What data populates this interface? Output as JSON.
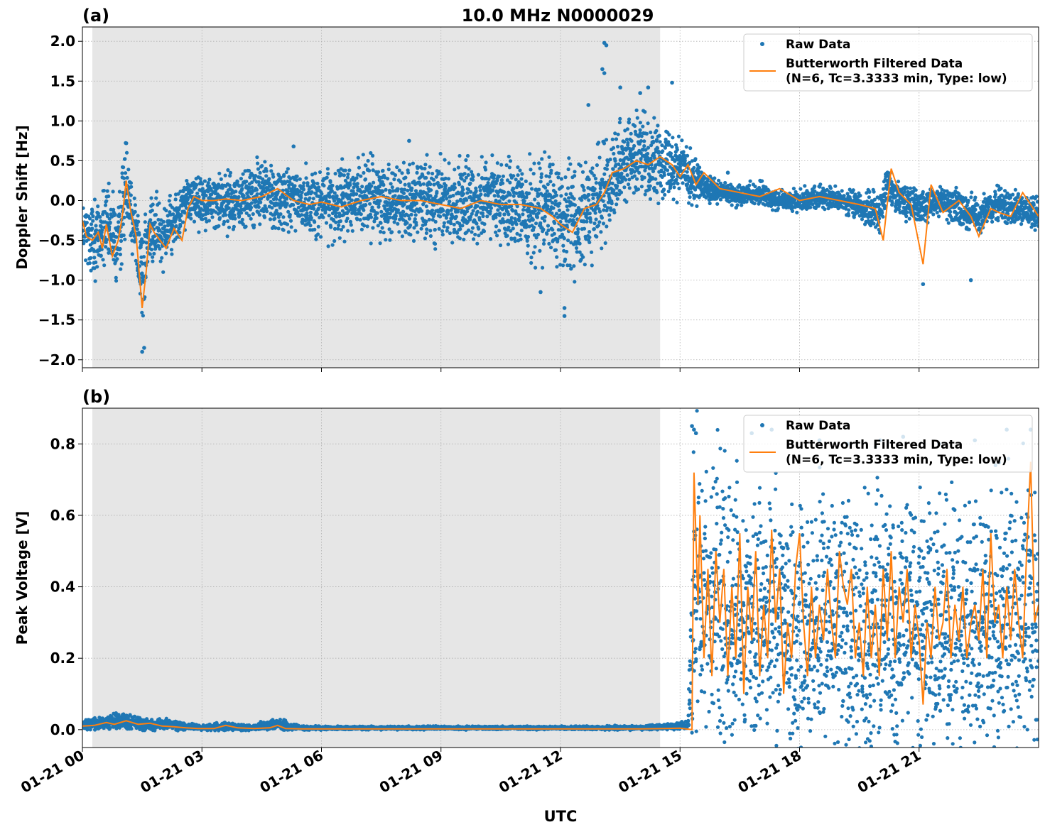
{
  "figure": {
    "suptitle": "10.0 MHz N0000029",
    "xlabel": "UTC",
    "x_tick_labels": [
      "01-21 00",
      "01-21 03",
      "01-21 06",
      "01-21 09",
      "01-21 12",
      "01-21 15",
      "01-21 18",
      "01-21 21"
    ],
    "colors": {
      "raw": "#1f77b4",
      "filtered": "#ff7f0e",
      "night_shade": "#e6e6e6",
      "grid": "#b0b0b0"
    }
  },
  "chart_data": [
    {
      "type": "scatter",
      "panel_label": "(a)",
      "title": "10.0 MHz N0000029",
      "xlabel": "UTC",
      "ylabel": "Doppler Shift [Hz]",
      "xlim_hours": [
        0,
        24
      ],
      "ylim": [
        -2.1,
        2.18
      ],
      "y_ticks": [
        -2.0,
        -1.5,
        -1.0,
        -0.5,
        0.0,
        0.5,
        1.0,
        1.5,
        2.0
      ],
      "y_tick_labels": [
        "−2.0",
        "−1.5",
        "−1.0",
        "−0.5",
        "0.0",
        "0.5",
        "1.0",
        "1.5",
        "2.0"
      ],
      "shaded_interval_hours": [
        0.25,
        14.5
      ],
      "grid": true,
      "legend": {
        "placement": "top-right",
        "entries": [
          "Raw Data",
          "Butterworth Filtered Data",
          "(N=6, Tc=3.3333 min, Type: low)"
        ]
      },
      "series": [
        {
          "name": "Raw Data",
          "style": "points",
          "x_hours": [
            0.0,
            0.3,
            0.6,
            0.9,
            1.1,
            1.3,
            1.5,
            1.7,
            2.0,
            2.3,
            2.6,
            3.0,
            3.5,
            4.0,
            4.5,
            5.0,
            5.5,
            6.0,
            6.5,
            7.0,
            7.5,
            8.0,
            8.5,
            9.0,
            9.5,
            10.0,
            10.5,
            11.0,
            11.5,
            12.0,
            12.4,
            12.8,
            13.1,
            13.5,
            14.0,
            14.5,
            15.0,
            15.3,
            15.6,
            16.0,
            16.5,
            17.0,
            17.5,
            18.0,
            18.5,
            19.0,
            19.5,
            20.0,
            20.2,
            20.5,
            21.0,
            21.5,
            22.0,
            22.5,
            23.0,
            23.5,
            24.0
          ],
          "center": [
            -0.4,
            -0.5,
            -0.3,
            -0.6,
            0.3,
            -0.3,
            -0.9,
            -0.4,
            -0.4,
            -0.3,
            0.0,
            0.0,
            0.0,
            0.0,
            0.1,
            0.0,
            0.0,
            -0.05,
            0.0,
            0.05,
            0.0,
            0.0,
            0.0,
            -0.05,
            -0.05,
            0.0,
            0.0,
            -0.1,
            -0.1,
            -0.15,
            -0.25,
            -0.1,
            0.15,
            0.5,
            0.55,
            0.5,
            0.45,
            0.3,
            0.15,
            0.1,
            0.05,
            0.1,
            0.0,
            0.0,
            0.05,
            0.0,
            -0.05,
            -0.2,
            0.2,
            0.05,
            -0.1,
            0.0,
            -0.1,
            -0.2,
            -0.05,
            -0.1,
            -0.2
          ],
          "spread": [
            0.35,
            0.45,
            0.4,
            0.5,
            0.5,
            0.4,
            0.6,
            0.4,
            0.35,
            0.3,
            0.25,
            0.3,
            0.3,
            0.35,
            0.35,
            0.35,
            0.35,
            0.4,
            0.4,
            0.4,
            0.4,
            0.4,
            0.4,
            0.45,
            0.45,
            0.45,
            0.45,
            0.5,
            0.55,
            0.6,
            0.6,
            0.55,
            0.5,
            0.45,
            0.45,
            0.4,
            0.35,
            0.3,
            0.15,
            0.12,
            0.12,
            0.12,
            0.12,
            0.12,
            0.12,
            0.12,
            0.15,
            0.25,
            0.2,
            0.18,
            0.2,
            0.15,
            0.2,
            0.2,
            0.18,
            0.18,
            0.18
          ],
          "extreme_points": [
            [
              13.1,
              1.98
            ],
            [
              13.15,
              1.95
            ],
            [
              13.05,
              1.65
            ],
            [
              13.1,
              1.6
            ],
            [
              1.5,
              -1.9
            ],
            [
              1.55,
              -1.85
            ],
            [
              12.1,
              -1.45
            ],
            [
              12.1,
              -1.35
            ],
            [
              14.2,
              1.42
            ],
            [
              14.8,
              1.48
            ],
            [
              5.3,
              0.68
            ],
            [
              8.2,
              0.75
            ],
            [
              11.5,
              -1.15
            ],
            [
              21.1,
              -1.05
            ],
            [
              22.3,
              -1.0
            ],
            [
              1.1,
              0.72
            ],
            [
              12.7,
              1.2
            ],
            [
              13.5,
              1.42
            ],
            [
              14.0,
              1.35
            ],
            [
              16.2,
              0.35
            ]
          ]
        },
        {
          "name": "Butterworth Filtered Data",
          "style": "line",
          "x_hours": [
            0.0,
            0.1,
            0.25,
            0.4,
            0.5,
            0.6,
            0.75,
            0.9,
            1.0,
            1.1,
            1.2,
            1.35,
            1.5,
            1.6,
            1.7,
            1.8,
            1.95,
            2.1,
            2.3,
            2.5,
            2.65,
            2.8,
            3.0,
            3.3,
            3.6,
            4.0,
            4.5,
            4.9,
            5.3,
            5.7,
            6.0,
            6.5,
            7.0,
            7.5,
            8.0,
            8.5,
            9.0,
            9.5,
            10.0,
            10.5,
            11.0,
            11.5,
            11.8,
            12.0,
            12.3,
            12.6,
            12.9,
            13.1,
            13.3,
            13.6,
            13.9,
            14.2,
            14.5,
            14.8,
            15.0,
            15.2,
            15.4,
            15.6,
            16.0,
            16.5,
            17.0,
            17.5,
            18.0,
            18.5,
            19.0,
            19.5,
            19.9,
            20.1,
            20.3,
            20.5,
            20.8,
            21.1,
            21.3,
            21.6,
            22.0,
            22.3,
            22.5,
            22.8,
            23.0,
            23.3,
            23.6,
            24.0
          ],
          "values": [
            -0.25,
            -0.45,
            -0.5,
            -0.4,
            -0.6,
            -0.3,
            -0.7,
            -0.5,
            -0.2,
            0.25,
            -0.1,
            -0.45,
            -1.35,
            -0.9,
            -0.3,
            -0.4,
            -0.5,
            -0.6,
            -0.35,
            -0.5,
            -0.1,
            0.05,
            0.0,
            0.0,
            0.02,
            0.0,
            0.05,
            0.15,
            0.0,
            -0.05,
            -0.02,
            -0.08,
            0.0,
            0.05,
            0.0,
            0.0,
            -0.05,
            -0.1,
            0.0,
            -0.05,
            -0.05,
            -0.1,
            -0.2,
            -0.3,
            -0.4,
            -0.1,
            -0.05,
            0.1,
            0.35,
            0.4,
            0.5,
            0.45,
            0.55,
            0.45,
            0.3,
            0.45,
            0.2,
            0.35,
            0.15,
            0.1,
            0.05,
            0.15,
            0.0,
            0.05,
            0.0,
            -0.05,
            -0.1,
            -0.5,
            0.4,
            0.1,
            -0.05,
            -0.8,
            0.2,
            -0.15,
            0.0,
            -0.2,
            -0.45,
            -0.1,
            -0.15,
            -0.2,
            0.1,
            -0.2
          ]
        }
      ]
    },
    {
      "type": "scatter",
      "panel_label": "(b)",
      "xlabel": "UTC",
      "ylabel": "Peak Voltage [V]",
      "xlim_hours": [
        0,
        24
      ],
      "ylim": [
        -0.05,
        0.9
      ],
      "y_ticks": [
        0.0,
        0.2,
        0.4,
        0.6,
        0.8
      ],
      "y_tick_labels": [
        "0.0",
        "0.2",
        "0.4",
        "0.6",
        "0.8"
      ],
      "shaded_interval_hours": [
        0.25,
        14.5
      ],
      "grid": true,
      "legend": {
        "placement": "top-right",
        "entries": [
          "Raw Data",
          "Butterworth Filtered Data",
          "(N=6, Tc=3.3333 min, Type: low)"
        ]
      },
      "series": [
        {
          "name": "Raw Data",
          "style": "points",
          "x_hours": [
            0.0,
            0.5,
            1.0,
            1.5,
            2.0,
            2.5,
            3.0,
            3.6,
            4.2,
            4.9,
            5.5,
            6.0,
            7.0,
            8.0,
            9.0,
            10.0,
            11.0,
            12.0,
            13.0,
            14.0,
            14.9,
            15.2,
            15.35,
            15.5,
            16.0,
            16.5,
            17.0,
            17.5,
            18.0,
            18.5,
            19.0,
            19.5,
            20.0,
            20.5,
            21.0,
            21.5,
            22.0,
            22.5,
            23.0,
            23.5,
            24.0
          ],
          "center": [
            0.015,
            0.02,
            0.025,
            0.015,
            0.015,
            0.01,
            0.005,
            0.01,
            0.005,
            0.015,
            0.005,
            0.005,
            0.005,
            0.005,
            0.005,
            0.005,
            0.005,
            0.005,
            0.005,
            0.005,
            0.01,
            0.01,
            0.4,
            0.4,
            0.35,
            0.3,
            0.3,
            0.3,
            0.25,
            0.3,
            0.3,
            0.28,
            0.3,
            0.28,
            0.3,
            0.3,
            0.25,
            0.3,
            0.3,
            0.32,
            0.3
          ],
          "spread": [
            0.012,
            0.015,
            0.02,
            0.015,
            0.012,
            0.01,
            0.005,
            0.012,
            0.005,
            0.015,
            0.005,
            0.004,
            0.004,
            0.004,
            0.004,
            0.004,
            0.004,
            0.004,
            0.004,
            0.005,
            0.008,
            0.01,
            0.38,
            0.38,
            0.35,
            0.35,
            0.35,
            0.3,
            0.28,
            0.35,
            0.35,
            0.33,
            0.35,
            0.3,
            0.3,
            0.35,
            0.3,
            0.35,
            0.35,
            0.4,
            0.35
          ],
          "extreme_points": [
            [
              15.3,
              0.85
            ],
            [
              15.35,
              0.84
            ],
            [
              15.4,
              0.83
            ],
            [
              16.8,
              0.83
            ],
            [
              17.3,
              0.84
            ],
            [
              18.5,
              0.81
            ],
            [
              20.6,
              0.82
            ],
            [
              23.2,
              0.84
            ],
            [
              23.8,
              0.84
            ],
            [
              22.4,
              0.81
            ],
            [
              19.2,
              0.8
            ],
            [
              21.5,
              0.8
            ]
          ]
        },
        {
          "name": "Butterworth Filtered Data",
          "style": "line",
          "x_hours": [
            0.0,
            0.3,
            0.6,
            0.8,
            1.1,
            1.4,
            1.7,
            2.0,
            2.3,
            2.6,
            2.9,
            3.3,
            3.6,
            3.9,
            4.3,
            4.7,
            4.9,
            5.1,
            5.5,
            6.0,
            7.0,
            8.0,
            9.0,
            10.0,
            11.0,
            12.0,
            13.0,
            14.0,
            14.6,
            15.0,
            15.3,
            15.35,
            15.45,
            15.5,
            15.6,
            15.7,
            15.8,
            15.9,
            16.0,
            16.1,
            16.2,
            16.3,
            16.4,
            16.5,
            16.6,
            16.7,
            16.8,
            16.9,
            17.0,
            17.1,
            17.2,
            17.3,
            17.4,
            17.5,
            17.6,
            17.7,
            17.8,
            17.9,
            18.0,
            18.1,
            18.2,
            18.3,
            18.4,
            18.5,
            18.6,
            18.7,
            18.8,
            18.9,
            19.0,
            19.1,
            19.2,
            19.3,
            19.4,
            19.5,
            19.6,
            19.7,
            19.8,
            19.9,
            20.0,
            20.1,
            20.2,
            20.3,
            20.4,
            20.5,
            20.6,
            20.7,
            20.8,
            20.9,
            21.0,
            21.1,
            21.2,
            21.3,
            21.4,
            21.5,
            21.6,
            21.7,
            21.8,
            21.9,
            22.0,
            22.1,
            22.2,
            22.3,
            22.4,
            22.5,
            22.6,
            22.7,
            22.8,
            22.9,
            23.0,
            23.1,
            23.2,
            23.3,
            23.4,
            23.5,
            23.6,
            23.7,
            23.8,
            23.9,
            24.0
          ],
          "values": [
            0.01,
            0.012,
            0.02,
            0.015,
            0.025,
            0.015,
            0.018,
            0.01,
            0.008,
            0.005,
            0.003,
            0.003,
            0.012,
            0.005,
            0.003,
            0.005,
            0.012,
            0.003,
            0.002,
            0.002,
            0.002,
            0.002,
            0.002,
            0.002,
            0.002,
            0.002,
            0.002,
            0.002,
            0.003,
            0.004,
            0.0,
            0.72,
            0.35,
            0.6,
            0.2,
            0.45,
            0.15,
            0.5,
            0.3,
            0.45,
            0.15,
            0.4,
            0.2,
            0.55,
            0.1,
            0.4,
            0.25,
            0.5,
            0.15,
            0.35,
            0.2,
            0.56,
            0.3,
            0.45,
            0.1,
            0.3,
            0.2,
            0.45,
            0.55,
            0.3,
            0.15,
            0.4,
            0.2,
            0.35,
            0.25,
            0.45,
            0.3,
            0.2,
            0.5,
            0.4,
            0.35,
            0.45,
            0.2,
            0.3,
            0.15,
            0.4,
            0.2,
            0.35,
            0.15,
            0.45,
            0.25,
            0.5,
            0.2,
            0.4,
            0.3,
            0.45,
            0.2,
            0.35,
            0.25,
            0.07,
            0.3,
            0.2,
            0.4,
            0.25,
            0.3,
            0.45,
            0.2,
            0.35,
            0.25,
            0.4,
            0.2,
            0.3,
            0.35,
            0.25,
            0.45,
            0.2,
            0.55,
            0.3,
            0.35,
            0.2,
            0.4,
            0.25,
            0.45,
            0.3,
            0.2,
            0.5,
            0.75,
            0.3,
            0.35
          ]
        }
      ]
    }
  ]
}
